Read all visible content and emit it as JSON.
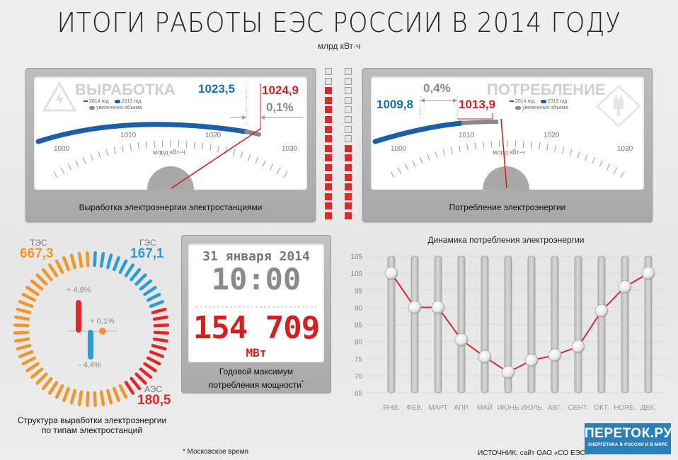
{
  "header": {
    "title": "ИТОГИ РАБОТЫ ЕЭС РОССИИ В 2014 ГОДУ",
    "unit": "млрд кВт·ч"
  },
  "generation": {
    "heading": "ВЫРАБОТКА",
    "value_2013": "1023,5",
    "value_2014": "1024,9",
    "change": "0,1%",
    "legend_2014": "2014 год",
    "legend_2013": "2013 год",
    "legend_increase": "увеличение объема",
    "scale": [
      "1000",
      "1010",
      "1020",
      "1030"
    ],
    "scale_unit": "млрд кВт-ч",
    "caption": "Выработка электроэнергии электростанциями"
  },
  "consumption": {
    "heading": "ПОТРЕБЛЕНИЕ",
    "value_2013": "1009,8",
    "value_2014": "1013,9",
    "change": "0,4%",
    "legend_2014": "2014 год",
    "legend_2013": "2013 год",
    "legend_increase": "увеличение объема",
    "scale": [
      "1000",
      "1010",
      "1020",
      "1030"
    ],
    "scale_unit": "млрд кВт-ч",
    "caption": "Потребление электроэнергии"
  },
  "structure": {
    "tes_label": "ТЭС",
    "tes_value": "667,3",
    "ges_label": "ГЭС",
    "ges_value": "167,1",
    "aes_label": "АЭС",
    "aes_value": "180,5",
    "tes_change": "+ 0,1%",
    "ges_change": "- 4,4%",
    "aes_change": "+ 4,8%",
    "caption_line1": "Структура выработки электроэнергии",
    "caption_line2": "по типам электростанций",
    "colors": {
      "tes": "#f0962a",
      "ges": "#2f9bd6",
      "aes": "#dc2a2a"
    }
  },
  "peak": {
    "date": "31 января 2014",
    "time": "10:00",
    "value": "154 709",
    "unit": "МВт",
    "caption_line1": "Годовой максимум",
    "caption_line2": "потребления мощности",
    "asterisk": "*"
  },
  "footer": {
    "note": "* Московское время",
    "source": "ИСТОЧНИК: сайт ОАО «СО ЕЭС»",
    "logo_main": "ПЕРЕТОК.РУ",
    "logo_sub": "ЭНЕРГЕТИКА В РОССИИ И В МИРЕ"
  },
  "chart_data": [
    {
      "type": "bar",
      "title": "Выработка электроэнергии электростанциями (gauge)",
      "categories": [
        "2013",
        "2014"
      ],
      "values": [
        1023.5,
        1024.9
      ],
      "change_pct": 0.1,
      "ylim": [
        1000,
        1030
      ],
      "ylabel": "млрд кВт-ч"
    },
    {
      "type": "bar",
      "title": "Потребление электроэнергии (gauge)",
      "categories": [
        "2013",
        "2014"
      ],
      "values": [
        1009.8,
        1013.9
      ],
      "change_pct": 0.4,
      "ylim": [
        1000,
        1030
      ],
      "ylabel": "млрд кВт-ч"
    },
    {
      "type": "pie",
      "title": "Структура выработки электроэнергии по типам электростанций",
      "categories": [
        "ТЭС",
        "ГЭС",
        "АЭС"
      ],
      "values": [
        667.3,
        167.1,
        180.5
      ],
      "change_pct": [
        0.1,
        -4.4,
        4.8
      ],
      "unit": "млрд кВт·ч"
    },
    {
      "type": "line",
      "title": "Динамика потребления электроэнергии",
      "categories": [
        "ЯНВ.",
        "ФЕВ.",
        "МАРТ",
        "АПР.",
        "МАЙ",
        "ИЮНЬ",
        "ИЮЛЬ",
        "АВГ.",
        "СЕНТ.",
        "ОКТ.",
        "НОЯБ.",
        "ДЕК."
      ],
      "values": [
        100,
        90,
        90,
        80.5,
        75.5,
        71,
        74.5,
        76,
        78.5,
        89,
        96,
        100
      ],
      "yticks": [
        65,
        70,
        75,
        80,
        85,
        90,
        95,
        100,
        105
      ],
      "ylim": [
        65,
        105
      ],
      "xlabel": "",
      "ylabel": "",
      "grid": true
    }
  ]
}
